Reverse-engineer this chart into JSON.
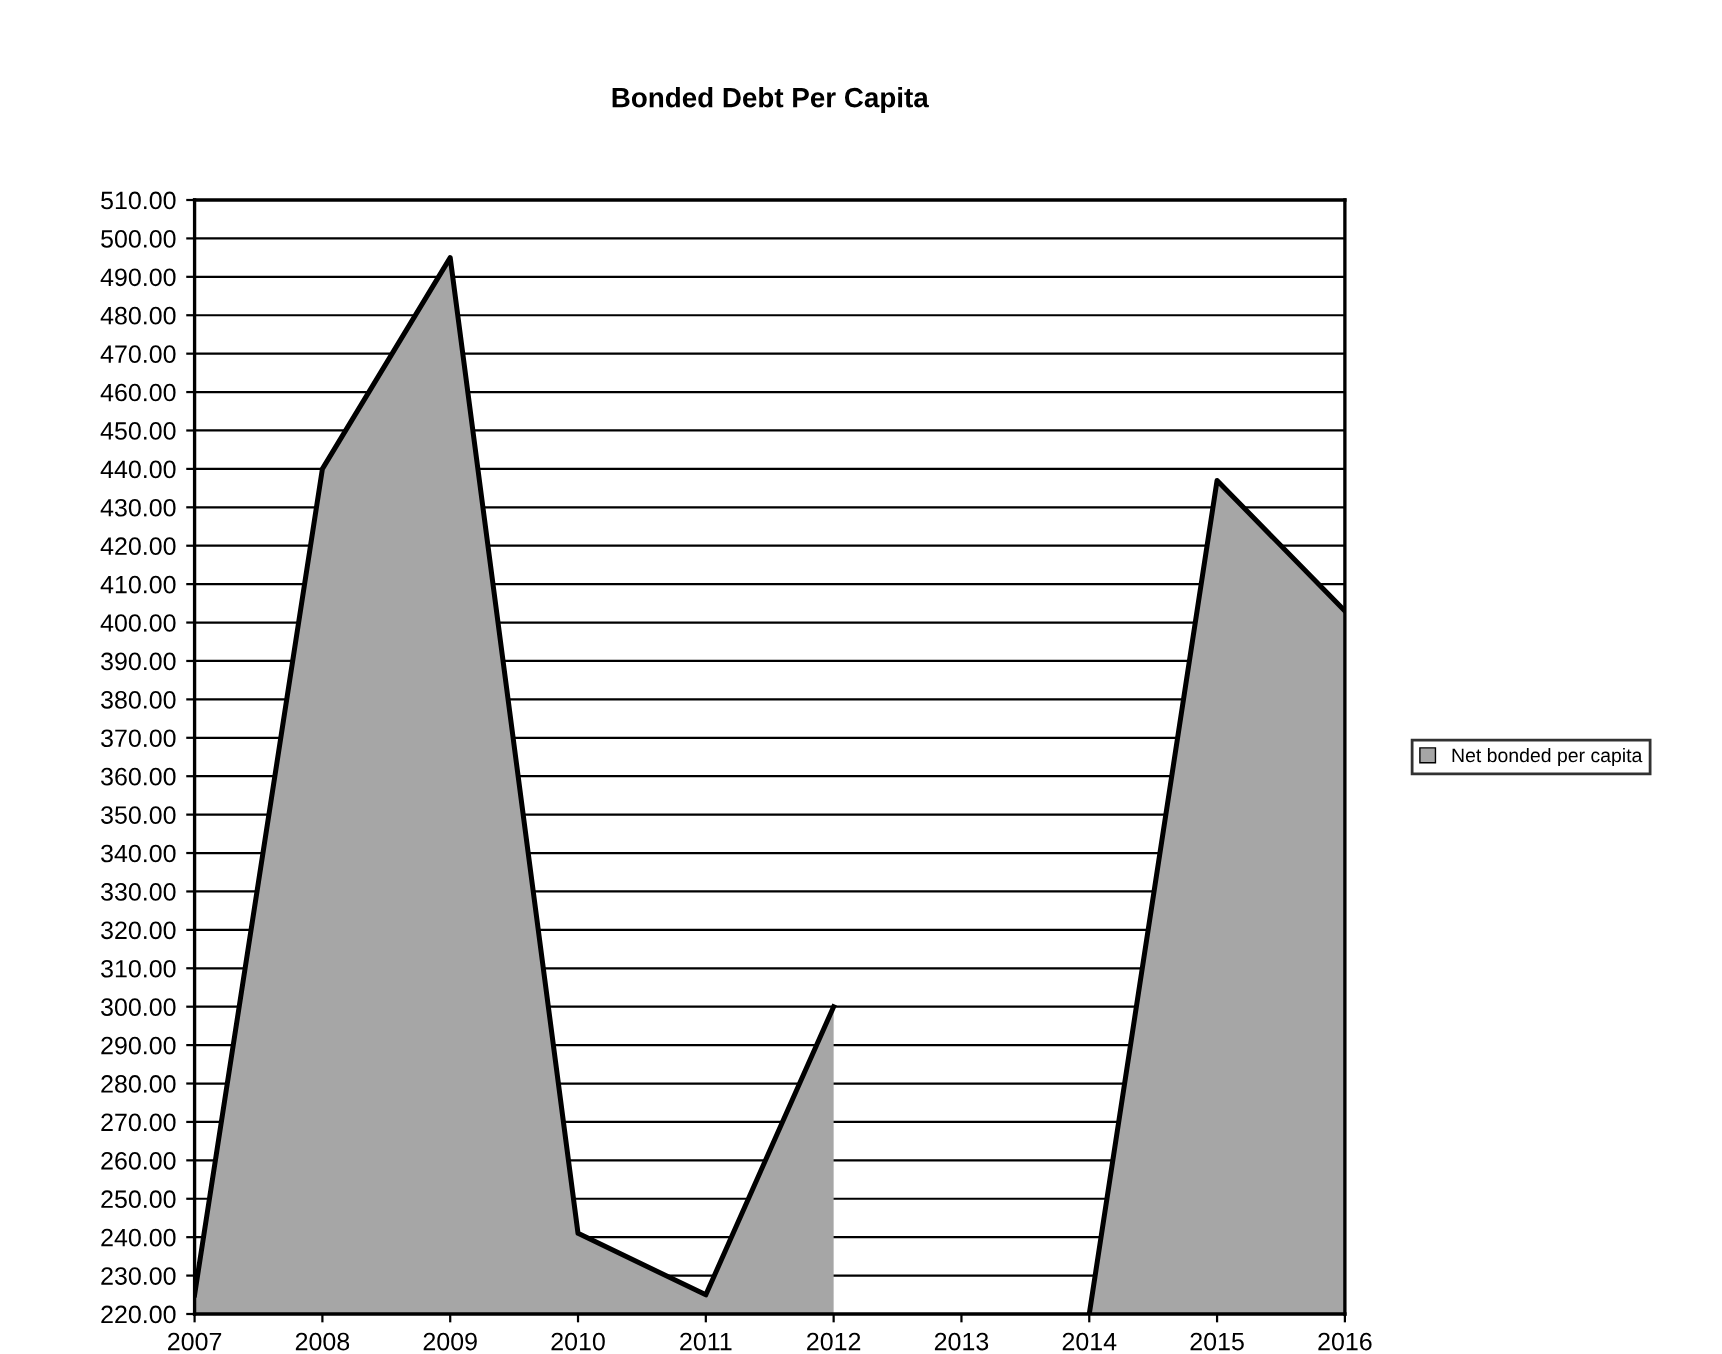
{
  "chart_data": {
    "type": "area",
    "title": "Bonded Debt Per Capita",
    "x": [
      2007,
      2008,
      2009,
      2010,
      2011,
      2012,
      2013,
      2014,
      2015,
      2016
    ],
    "series": [
      {
        "name": "Net bonded per capita",
        "color": "#a6a6a6",
        "values": [
          225,
          440,
          495,
          241,
          225,
          300,
          null,
          220,
          437,
          403
        ]
      }
    ],
    "xlim": [
      2007,
      2016
    ],
    "xticks": [
      2007,
      2008,
      2009,
      2010,
      2011,
      2012,
      2013,
      2014,
      2015,
      2016
    ],
    "ylim": [
      220,
      510
    ],
    "yticks": [
      {
        "value": 220,
        "label": "220.00"
      },
      {
        "value": 230,
        "label": "230.00"
      },
      {
        "value": 240,
        "label": "240.00"
      },
      {
        "value": 250,
        "label": "250.00"
      },
      {
        "value": 260,
        "label": "260.00"
      },
      {
        "value": 270,
        "label": "270.00"
      },
      {
        "value": 280,
        "label": "280.00"
      },
      {
        "value": 290,
        "label": "290.00"
      },
      {
        "value": 300,
        "label": "300.00"
      },
      {
        "value": 310,
        "label": "310.00"
      },
      {
        "value": 320,
        "label": "320.00"
      },
      {
        "value": 330,
        "label": "330.00"
      },
      {
        "value": 340,
        "label": "340.00"
      },
      {
        "value": 350,
        "label": "350.00"
      },
      {
        "value": 360,
        "label": "360.00"
      },
      {
        "value": 370,
        "label": "370.00"
      },
      {
        "value": 380,
        "label": "380.00"
      },
      {
        "value": 390,
        "label": "390.00"
      },
      {
        "value": 400,
        "label": "400.00"
      },
      {
        "value": 410,
        "label": "410.00"
      },
      {
        "value": 420,
        "label": "420.00"
      },
      {
        "value": 430,
        "label": "430.00"
      },
      {
        "value": 440,
        "label": "440.00"
      },
      {
        "value": 450,
        "label": "450.00"
      },
      {
        "value": 460,
        "label": "460.00"
      },
      {
        "value": 470,
        "label": "470.00"
      },
      {
        "value": 480,
        "label": "480.00"
      },
      {
        "value": 490,
        "label": "490.00"
      },
      {
        "value": 500,
        "label": "500.00"
      },
      {
        "value": 510,
        "label": "510.00"
      }
    ],
    "grid": "y",
    "legend": "right"
  }
}
